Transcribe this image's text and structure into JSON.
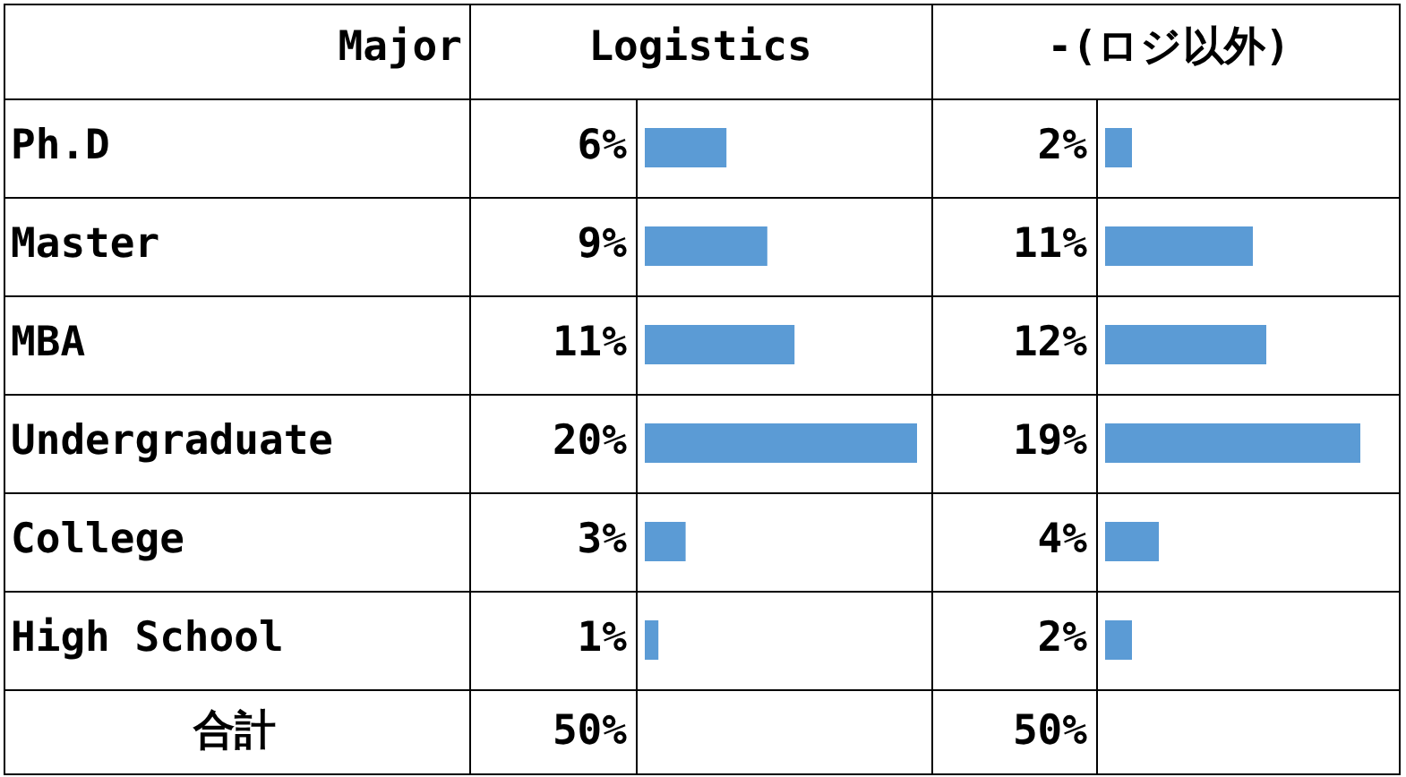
{
  "chart_data": [
    {
      "type": "bar",
      "orientation": "horizontal",
      "title": "Logistics",
      "ylabel": "Major",
      "categories": [
        "Ph.D",
        "Master",
        "MBA",
        "Undergraduate",
        "College",
        "High School"
      ],
      "values": [
        6,
        9,
        11,
        20,
        3,
        1
      ],
      "value_labels": [
        "6%",
        "9%",
        "11%",
        "20%",
        "3%",
        "1%"
      ],
      "color": "#5b9bd5",
      "tick_labels": "y",
      "annotations": [
        "合計",
        "50%"
      ]
    },
    {
      "type": "bar",
      "orientation": "horizontal",
      "title": "-(ロジ以外)",
      "values": [
        2,
        11,
        12,
        19,
        4,
        2
      ],
      "value_labels": [
        "2%",
        "11%",
        "12%",
        "19%",
        "4%",
        "2%"
      ],
      "color": "#5b9bd5",
      "annotations": [
        "50%"
      ]
    }
  ]
}
